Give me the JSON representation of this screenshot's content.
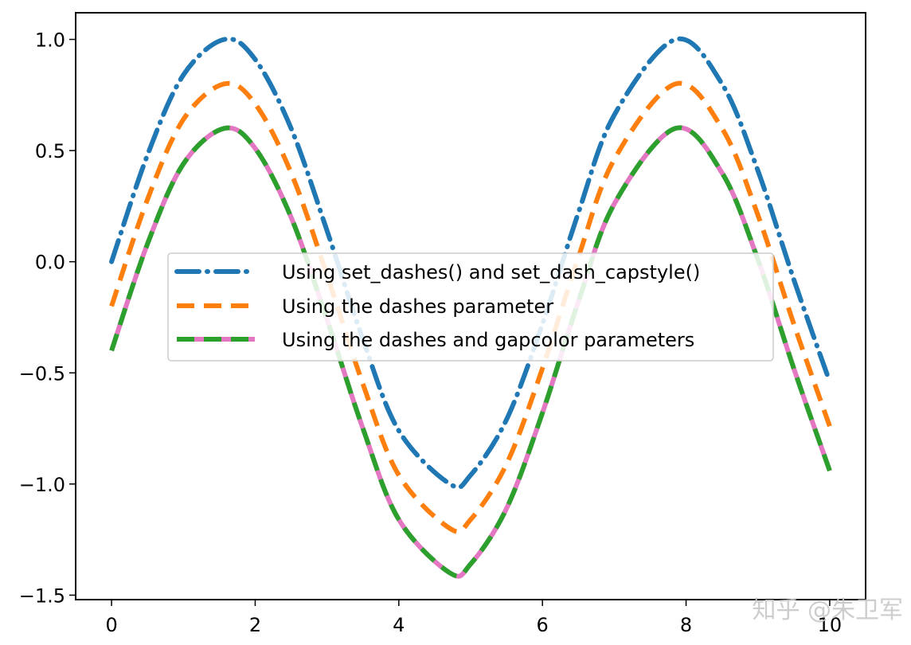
{
  "chart_data": {
    "type": "line",
    "xlim": [
      -0.5,
      10.5
    ],
    "ylim": [
      -1.52,
      1.12
    ],
    "x_ticks": [
      0,
      2,
      4,
      6,
      8,
      10
    ],
    "x_tick_labels": [
      "0",
      "2",
      "4",
      "6",
      "8",
      "10"
    ],
    "y_ticks": [
      1.0,
      0.5,
      0.0,
      -0.5,
      -1.0,
      -1.5
    ],
    "y_tick_labels": [
      "1.0",
      "0.5",
      "0.0",
      "−0.5",
      "−1.0",
      "−1.5"
    ],
    "grid": false,
    "legend_position": "center",
    "series": [
      {
        "name": "Using set_dashes() and set_dash_capstyle()",
        "color": "#1f77b4",
        "style": "dash-dot, round caps",
        "x": [
          0,
          0.5,
          1.0,
          1.5708,
          2.0,
          2.5,
          3.0,
          3.5,
          4.0,
          4.7124,
          5.0,
          5.5,
          6.0,
          6.5,
          7.0,
          7.854,
          8.5,
          9.0,
          9.5,
          10.0
        ],
        "y": [
          0.0,
          0.48,
          0.84,
          1.0,
          0.91,
          0.6,
          0.14,
          -0.35,
          -0.76,
          -1.0,
          -0.96,
          -0.71,
          -0.28,
          0.22,
          0.66,
          1.0,
          0.8,
          0.41,
          -0.08,
          -0.54
        ]
      },
      {
        "name": "Using the dashes parameter",
        "color": "#ff7f0e",
        "style": "dashed",
        "x": [
          0,
          0.5,
          1.0,
          1.5708,
          2.0,
          2.5,
          3.0,
          3.5,
          4.0,
          4.7124,
          5.0,
          5.5,
          6.0,
          6.5,
          7.0,
          7.854,
          8.5,
          9.0,
          9.5,
          10.0
        ],
        "y": [
          -0.2,
          0.28,
          0.64,
          0.8,
          0.71,
          0.4,
          -0.06,
          -0.55,
          -0.96,
          -1.2,
          -1.16,
          -0.91,
          -0.48,
          0.02,
          0.46,
          0.8,
          0.6,
          0.21,
          -0.28,
          -0.74
        ]
      },
      {
        "name": "Using the dashes and gapcolor parameters",
        "color": "#2ca02c",
        "gap_color": "#e377c2",
        "style": "dashed with colored gaps",
        "x": [
          0,
          0.5,
          1.0,
          1.5708,
          2.0,
          2.5,
          3.0,
          3.5,
          4.0,
          4.7124,
          5.0,
          5.5,
          6.0,
          6.5,
          7.0,
          7.854,
          8.5,
          9.0,
          9.5,
          10.0
        ],
        "y": [
          -0.4,
          0.08,
          0.44,
          0.6,
          0.51,
          0.2,
          -0.26,
          -0.75,
          -1.16,
          -1.4,
          -1.36,
          -1.11,
          -0.68,
          -0.18,
          0.26,
          0.6,
          0.4,
          0.01,
          -0.48,
          -0.94
        ]
      }
    ]
  },
  "watermark": {
    "text": "知乎 @朱卫军"
  }
}
